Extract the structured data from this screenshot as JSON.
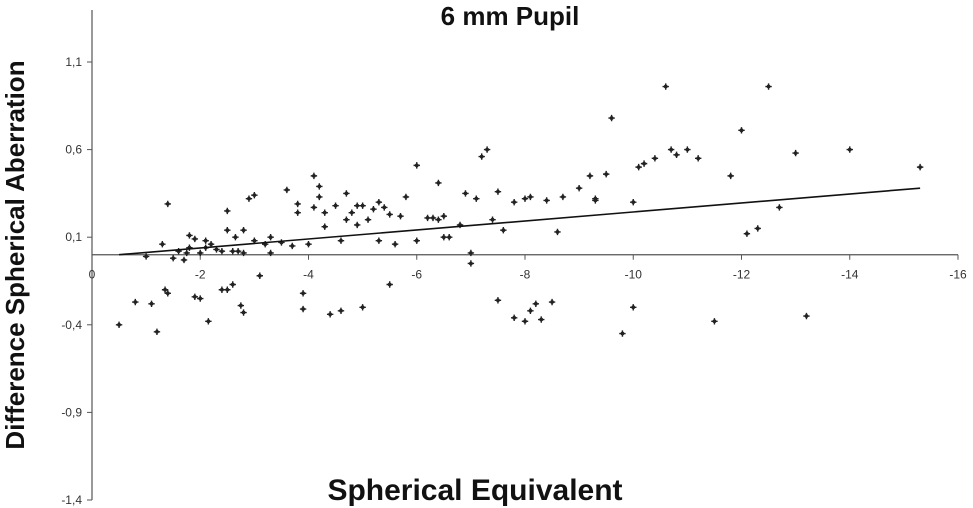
{
  "chart_data": {
    "type": "scatter",
    "title": "6 mm Pupil",
    "xlabel": "Spherical Equivalent",
    "ylabel": "Difference Spherical Aberration",
    "xlim": [
      0,
      -16
    ],
    "ylim": [
      -1.4,
      1.35
    ],
    "x_ticks": [
      0,
      -2,
      -4,
      -6,
      -8,
      -10,
      -12,
      -14,
      -16
    ],
    "x_tick_labels": [
      "0",
      "-2",
      "-4",
      "-6",
      "-8",
      "-10",
      "-12",
      "-14",
      "-16"
    ],
    "y_ticks": [
      1.1,
      0.6,
      0.1,
      -0.4,
      -0.9,
      -1.4
    ],
    "y_tick_labels": [
      "1,1",
      "0,6",
      "0,1",
      "-0,4",
      "-0,9",
      "-1,4"
    ],
    "trendline": {
      "x": [
        -0.5,
        -15.3
      ],
      "y": [
        0.0,
        0.38
      ]
    },
    "points": [
      [
        -0.5,
        -0.4
      ],
      [
        -0.8,
        -0.27
      ],
      [
        -1.0,
        -0.01
      ],
      [
        -1.1,
        -0.28
      ],
      [
        -1.2,
        -0.44
      ],
      [
        -1.3,
        0.06
      ],
      [
        -1.35,
        -0.2
      ],
      [
        -1.4,
        -0.22
      ],
      [
        -1.4,
        0.29
      ],
      [
        -1.5,
        -0.02
      ],
      [
        -1.6,
        0.02
      ],
      [
        -1.7,
        -0.03
      ],
      [
        -1.75,
        0.01
      ],
      [
        -1.8,
        0.04
      ],
      [
        -1.8,
        0.11
      ],
      [
        -1.9,
        0.09
      ],
      [
        -1.9,
        -0.24
      ],
      [
        -2.0,
        -0.25
      ],
      [
        -2.0,
        0.01
      ],
      [
        -2.1,
        0.04
      ],
      [
        -2.1,
        0.08
      ],
      [
        -2.15,
        -0.38
      ],
      [
        -2.2,
        0.06
      ],
      [
        -2.3,
        0.03
      ],
      [
        -2.4,
        0.02
      ],
      [
        -2.4,
        -0.2
      ],
      [
        -2.5,
        0.14
      ],
      [
        -2.5,
        0.25
      ],
      [
        -2.5,
        -0.2
      ],
      [
        -2.6,
        -0.17
      ],
      [
        -2.6,
        0.02
      ],
      [
        -2.65,
        0.1
      ],
      [
        -2.7,
        0.02
      ],
      [
        -2.75,
        -0.29
      ],
      [
        -2.8,
        0.01
      ],
      [
        -2.8,
        0.14
      ],
      [
        -2.8,
        -0.33
      ],
      [
        -2.9,
        0.32
      ],
      [
        -3.0,
        0.34
      ],
      [
        -3.0,
        0.08
      ],
      [
        -3.1,
        -0.12
      ],
      [
        -3.2,
        0.06
      ],
      [
        -3.3,
        0.01
      ],
      [
        -3.3,
        0.1
      ],
      [
        -3.5,
        0.07
      ],
      [
        -3.6,
        0.37
      ],
      [
        -3.7,
        0.05
      ],
      [
        -3.8,
        0.24
      ],
      [
        -3.8,
        0.29
      ],
      [
        -3.9,
        -0.22
      ],
      [
        -3.9,
        -0.31
      ],
      [
        -4.0,
        0.06
      ],
      [
        -4.1,
        0.45
      ],
      [
        -4.1,
        0.27
      ],
      [
        -4.2,
        0.33
      ],
      [
        -4.2,
        0.39
      ],
      [
        -4.3,
        0.16
      ],
      [
        -4.3,
        0.24
      ],
      [
        -4.4,
        -0.34
      ],
      [
        -4.5,
        0.28
      ],
      [
        -4.6,
        -0.32
      ],
      [
        -4.6,
        0.08
      ],
      [
        -4.7,
        0.2
      ],
      [
        -4.7,
        0.35
      ],
      [
        -4.8,
        0.24
      ],
      [
        -4.9,
        0.17
      ],
      [
        -4.9,
        0.28
      ],
      [
        -5.0,
        0.28
      ],
      [
        -5.0,
        -0.3
      ],
      [
        -5.1,
        0.2
      ],
      [
        -5.2,
        0.26
      ],
      [
        -5.3,
        0.3
      ],
      [
        -5.3,
        0.08
      ],
      [
        -5.4,
        0.27
      ],
      [
        -5.5,
        0.23
      ],
      [
        -5.5,
        -0.17
      ],
      [
        -5.6,
        0.06
      ],
      [
        -5.7,
        0.22
      ],
      [
        -5.8,
        0.33
      ],
      [
        -6.0,
        0.08
      ],
      [
        -6.0,
        0.51
      ],
      [
        -6.2,
        0.21
      ],
      [
        -6.3,
        0.21
      ],
      [
        -6.4,
        0.2
      ],
      [
        -6.4,
        0.41
      ],
      [
        -6.5,
        0.1
      ],
      [
        -6.5,
        0.22
      ],
      [
        -6.6,
        0.1
      ],
      [
        -6.8,
        0.17
      ],
      [
        -6.9,
        0.35
      ],
      [
        -7.0,
        -0.05
      ],
      [
        -7.0,
        0.01
      ],
      [
        -7.1,
        0.32
      ],
      [
        -7.2,
        0.56
      ],
      [
        -7.3,
        0.6
      ],
      [
        -7.4,
        0.2
      ],
      [
        -7.5,
        -0.26
      ],
      [
        -7.5,
        0.36
      ],
      [
        -7.6,
        0.14
      ],
      [
        -7.8,
        -0.36
      ],
      [
        -7.8,
        0.3
      ],
      [
        -8.0,
        -0.38
      ],
      [
        -8.0,
        0.32
      ],
      [
        -8.1,
        -0.32
      ],
      [
        -8.1,
        0.33
      ],
      [
        -8.2,
        -0.28
      ],
      [
        -8.3,
        -0.37
      ],
      [
        -8.4,
        0.31
      ],
      [
        -8.5,
        -0.27
      ],
      [
        -8.6,
        0.13
      ],
      [
        -8.7,
        0.33
      ],
      [
        -9.0,
        0.38
      ],
      [
        -9.2,
        0.45
      ],
      [
        -9.3,
        0.31
      ],
      [
        -9.3,
        0.32
      ],
      [
        -9.5,
        0.46
      ],
      [
        -9.6,
        0.78
      ],
      [
        -9.8,
        -0.45
      ],
      [
        -10.0,
        0.3
      ],
      [
        -10.0,
        -0.3
      ],
      [
        -10.1,
        0.5
      ],
      [
        -10.2,
        0.52
      ],
      [
        -10.4,
        0.55
      ],
      [
        -10.6,
        0.96
      ],
      [
        -10.7,
        0.6
      ],
      [
        -10.8,
        0.57
      ],
      [
        -11.0,
        0.6
      ],
      [
        -11.2,
        0.55
      ],
      [
        -11.5,
        -0.38
      ],
      [
        -11.8,
        0.45
      ],
      [
        -12.0,
        0.71
      ],
      [
        -12.1,
        0.12
      ],
      [
        -12.3,
        0.15
      ],
      [
        -12.5,
        0.96
      ],
      [
        -12.7,
        0.27
      ],
      [
        -13.0,
        0.58
      ],
      [
        -13.2,
        -0.35
      ],
      [
        -14.0,
        0.6
      ],
      [
        -15.3,
        0.5
      ]
    ]
  }
}
